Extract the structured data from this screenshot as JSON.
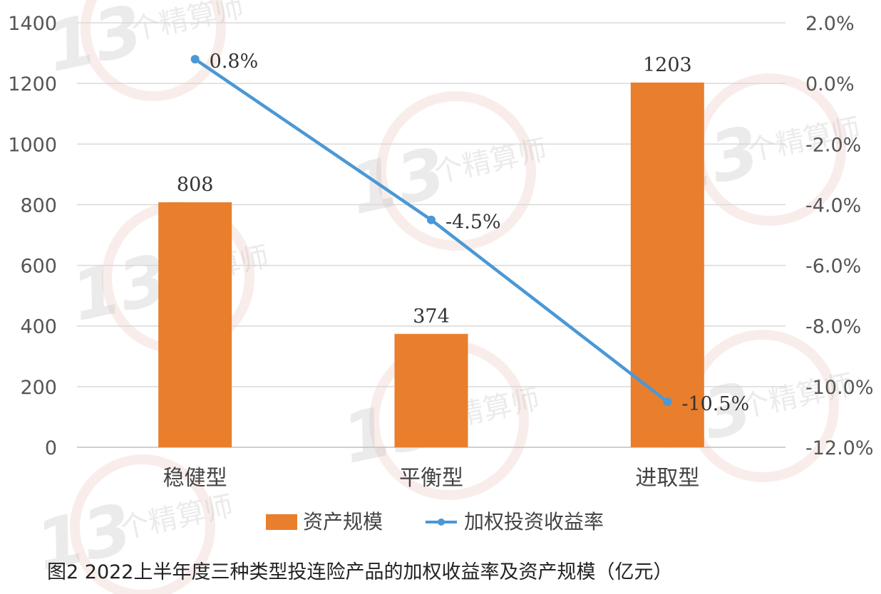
{
  "chart_data": {
    "type": "bar",
    "categories": [
      "稳健型",
      "平衡型",
      "进取型"
    ],
    "series": [
      {
        "name": "资产规模",
        "type": "bar",
        "axis": "left",
        "values": [
          808,
          374,
          1203
        ],
        "labels": [
          "808",
          "374",
          "1203"
        ],
        "color": "#E97E2D"
      },
      {
        "name": "加权投资收益率",
        "type": "line",
        "axis": "right",
        "values": [
          0.8,
          -4.5,
          -10.5
        ],
        "labels": [
          "0.8%",
          "-4.5%",
          "-10.5%"
        ],
        "color": "#4A98D6"
      }
    ],
    "y_left": {
      "ylim": [
        0,
        1400
      ],
      "ticks": [
        0,
        200,
        400,
        600,
        800,
        1000,
        1200,
        1400
      ],
      "tick_labels": [
        "0",
        "200",
        "400",
        "600",
        "800",
        "1000",
        "1200",
        "1400"
      ]
    },
    "y_right": {
      "ylim": [
        -12,
        2
      ],
      "ticks": [
        -12,
        -10,
        -8,
        -6,
        -4,
        -2,
        0,
        2
      ],
      "tick_labels": [
        "-12.0%",
        "-10.0%",
        "-8.0%",
        "-6.0%",
        "-4.0%",
        "-2.0%",
        "0.0%",
        "2.0%"
      ]
    },
    "grid": true,
    "legend": "bottom-center",
    "caption": "图2  2022上半年度三种类型投连险产品的加权收益率及资产规模（亿元）"
  },
  "watermark": {
    "number": "13",
    "text": "个精算师",
    "color": "#b8b8b8"
  }
}
